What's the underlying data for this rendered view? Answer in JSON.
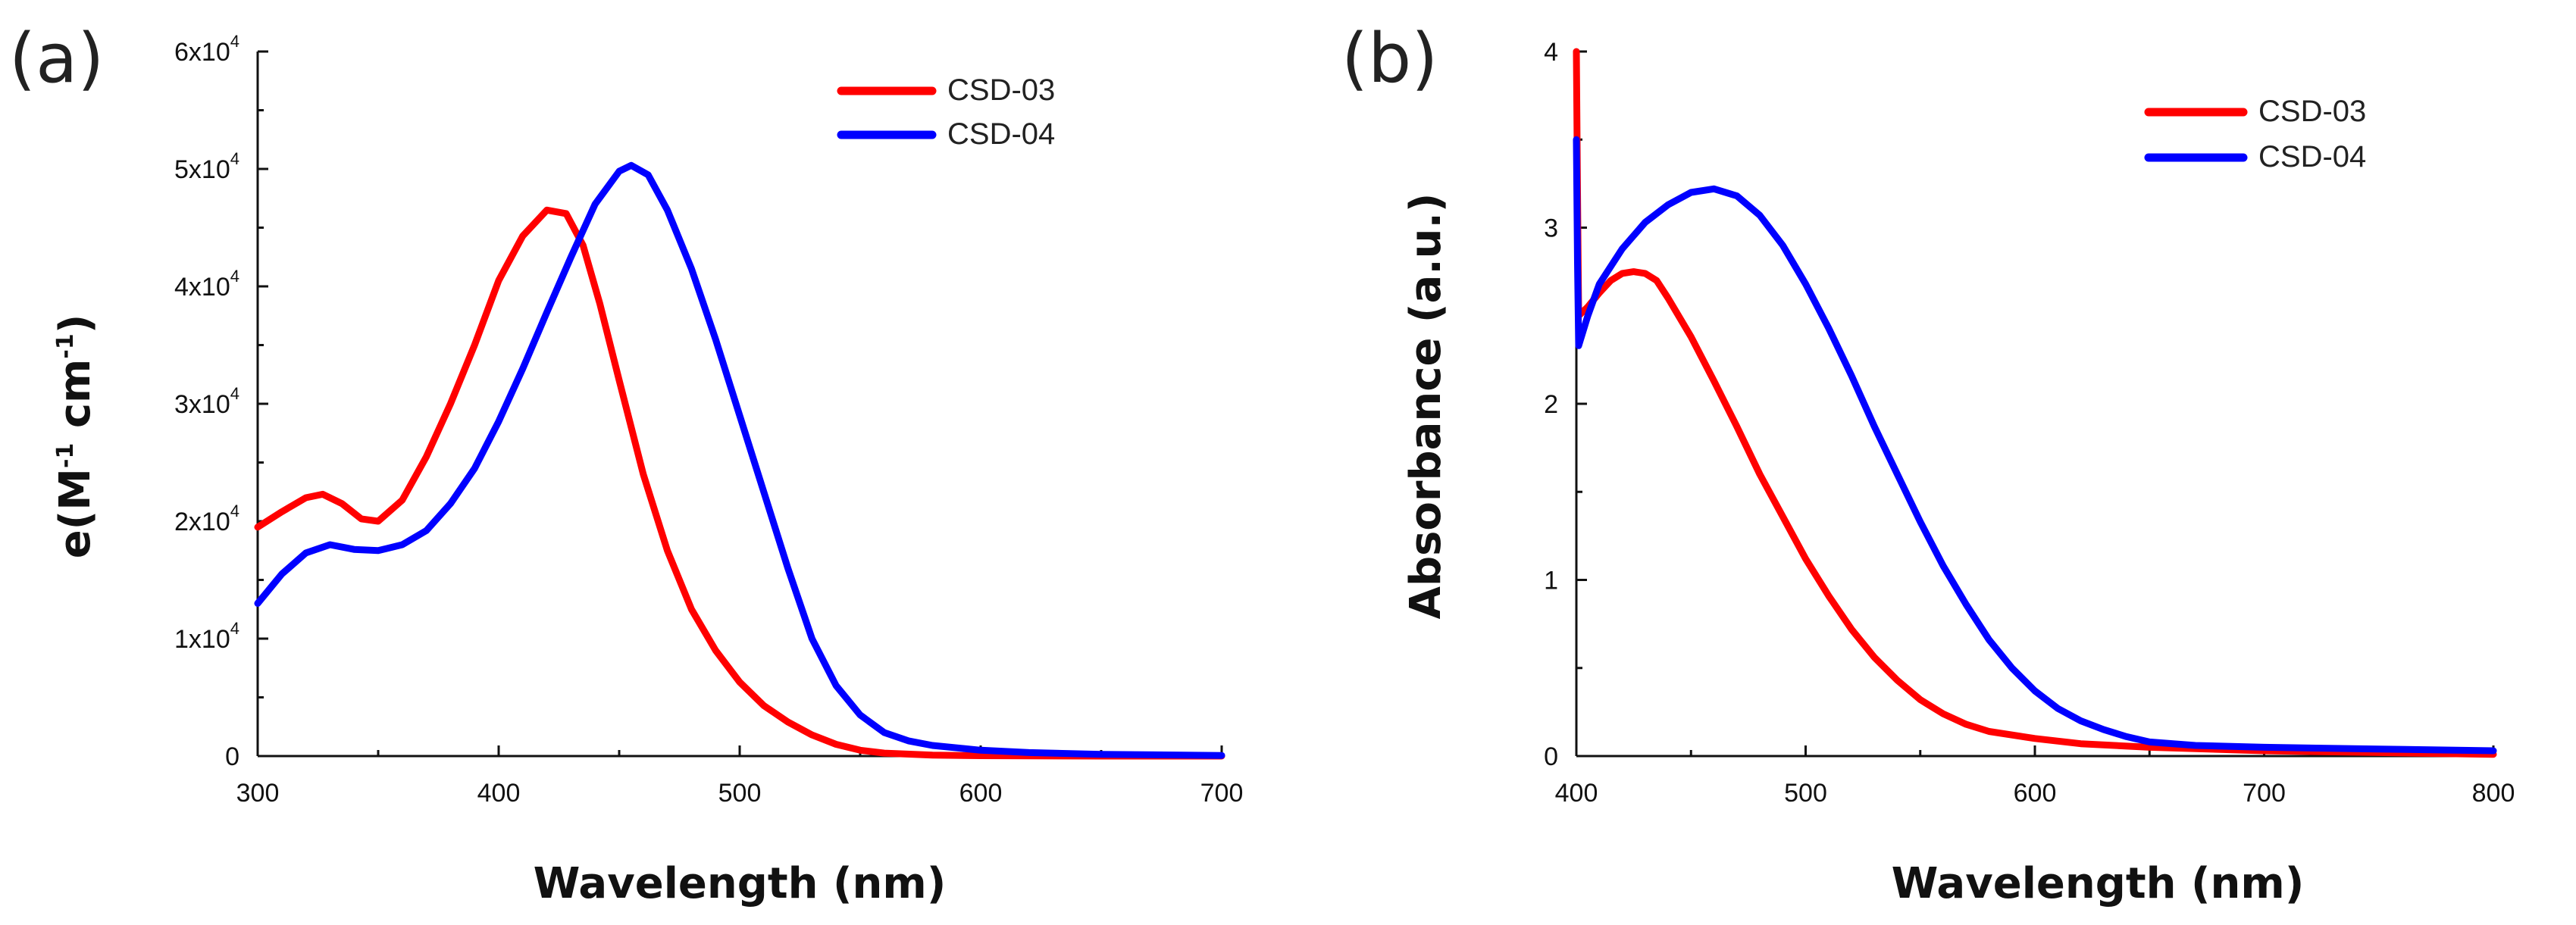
{
  "chart_data": [
    {
      "panel": "(a)",
      "type": "line",
      "title": "",
      "xlabel": "Wavelength (nm)",
      "ylabel": "e(M-1 cm-1)",
      "ylabel_parts": {
        "base": "e(M",
        "sup1": "-1",
        "mid": " cm",
        "sup2": "-1",
        "end": ")"
      },
      "xlim": [
        300,
        700
      ],
      "ylim": [
        0,
        60000
      ],
      "xticks": [
        300,
        400,
        500,
        600,
        700
      ],
      "yticks": [
        {
          "value": 0,
          "mantissa": "0",
          "exp": ""
        },
        {
          "value": 10000,
          "mantissa": "1x10",
          "exp": "4"
        },
        {
          "value": 20000,
          "mantissa": "2x10",
          "exp": "4"
        },
        {
          "value": 30000,
          "mantissa": "3x10",
          "exp": "4"
        },
        {
          "value": 40000,
          "mantissa": "4x10",
          "exp": "4"
        },
        {
          "value": 50000,
          "mantissa": "5x10",
          "exp": "4"
        },
        {
          "value": 60000,
          "mantissa": "6x10",
          "exp": "4"
        }
      ],
      "legend_position": "top-right",
      "series": [
        {
          "name": "CSD-03",
          "color": "#ff0000",
          "points": [
            [
              300,
              19500
            ],
            [
              310,
              20800
            ],
            [
              320,
              22000
            ],
            [
              327,
              22300
            ],
            [
              335,
              21500
            ],
            [
              343,
              20200
            ],
            [
              350,
              20000
            ],
            [
              360,
              21800
            ],
            [
              370,
              25500
            ],
            [
              380,
              30000
            ],
            [
              390,
              35000
            ],
            [
              400,
              40500
            ],
            [
              410,
              44300
            ],
            [
              420,
              46500
            ],
            [
              428,
              46200
            ],
            [
              435,
              43500
            ],
            [
              442,
              38500
            ],
            [
              450,
              32000
            ],
            [
              460,
              24000
            ],
            [
              470,
              17500
            ],
            [
              480,
              12500
            ],
            [
              490,
              9000
            ],
            [
              500,
              6300
            ],
            [
              510,
              4300
            ],
            [
              520,
              2900
            ],
            [
              530,
              1800
            ],
            [
              540,
              1000
            ],
            [
              550,
              500
            ],
            [
              560,
              250
            ],
            [
              580,
              80
            ],
            [
              600,
              30
            ],
            [
              650,
              0
            ],
            [
              700,
              0
            ]
          ]
        },
        {
          "name": "CSD-04",
          "color": "#0000ff",
          "points": [
            [
              300,
              13000
            ],
            [
              310,
              15500
            ],
            [
              320,
              17300
            ],
            [
              330,
              18000
            ],
            [
              340,
              17600
            ],
            [
              350,
              17500
            ],
            [
              360,
              18000
            ],
            [
              370,
              19200
            ],
            [
              380,
              21500
            ],
            [
              390,
              24500
            ],
            [
              400,
              28500
            ],
            [
              410,
              33000
            ],
            [
              420,
              37800
            ],
            [
              430,
              42500
            ],
            [
              440,
              47000
            ],
            [
              450,
              49800
            ],
            [
              455,
              50300
            ],
            [
              462,
              49500
            ],
            [
              470,
              46500
            ],
            [
              480,
              41500
            ],
            [
              490,
              35500
            ],
            [
              500,
              29000
            ],
            [
              510,
              22500
            ],
            [
              520,
              16000
            ],
            [
              530,
              10000
            ],
            [
              540,
              6000
            ],
            [
              550,
              3500
            ],
            [
              560,
              2000
            ],
            [
              570,
              1300
            ],
            [
              580,
              900
            ],
            [
              600,
              500
            ],
            [
              620,
              300
            ],
            [
              650,
              150
            ],
            [
              700,
              50
            ]
          ]
        }
      ]
    },
    {
      "panel": "(b)",
      "type": "line",
      "title": "",
      "xlabel": "Wavelength (nm)",
      "ylabel": "Absorbance (a.u.)",
      "xlim": [
        400,
        800
      ],
      "ylim": [
        0,
        4
      ],
      "xticks": [
        400,
        500,
        600,
        700,
        800
      ],
      "yticks": [
        {
          "value": 0,
          "mantissa": "0",
          "exp": ""
        },
        {
          "value": 1,
          "mantissa": "1",
          "exp": ""
        },
        {
          "value": 2,
          "mantissa": "2",
          "exp": ""
        },
        {
          "value": 3,
          "mantissa": "3",
          "exp": ""
        },
        {
          "value": 4,
          "mantissa": "4",
          "exp": ""
        }
      ],
      "legend_position": "top-right",
      "series": [
        {
          "name": "CSD-03",
          "color": "#ff0000",
          "points": [
            [
              400,
              4.0
            ],
            [
              400.5,
              3.2
            ],
            [
              401,
              2.5
            ],
            [
              405,
              2.55
            ],
            [
              410,
              2.63
            ],
            [
              415,
              2.7
            ],
            [
              420,
              2.74
            ],
            [
              425,
              2.75
            ],
            [
              430,
              2.74
            ],
            [
              435,
              2.7
            ],
            [
              440,
              2.6
            ],
            [
              450,
              2.38
            ],
            [
              460,
              2.13
            ],
            [
              470,
              1.87
            ],
            [
              480,
              1.6
            ],
            [
              490,
              1.36
            ],
            [
              500,
              1.12
            ],
            [
              510,
              0.91
            ],
            [
              520,
              0.72
            ],
            [
              530,
              0.56
            ],
            [
              540,
              0.43
            ],
            [
              550,
              0.32
            ],
            [
              560,
              0.24
            ],
            [
              570,
              0.18
            ],
            [
              580,
              0.14
            ],
            [
              600,
              0.1
            ],
            [
              620,
              0.07
            ],
            [
              650,
              0.05
            ],
            [
              700,
              0.03
            ],
            [
              750,
              0.02
            ],
            [
              800,
              0.01
            ]
          ]
        },
        {
          "name": "CSD-04",
          "color": "#0000ff",
          "points": [
            [
              400,
              3.5
            ],
            [
              400.5,
              2.8
            ],
            [
              401,
              2.33
            ],
            [
              405,
              2.5
            ],
            [
              410,
              2.68
            ],
            [
              420,
              2.88
            ],
            [
              430,
              3.03
            ],
            [
              440,
              3.13
            ],
            [
              450,
              3.2
            ],
            [
              460,
              3.22
            ],
            [
              470,
              3.18
            ],
            [
              480,
              3.07
            ],
            [
              490,
              2.9
            ],
            [
              500,
              2.68
            ],
            [
              510,
              2.43
            ],
            [
              520,
              2.16
            ],
            [
              530,
              1.87
            ],
            [
              540,
              1.6
            ],
            [
              550,
              1.33
            ],
            [
              560,
              1.08
            ],
            [
              570,
              0.86
            ],
            [
              580,
              0.66
            ],
            [
              590,
              0.5
            ],
            [
              600,
              0.37
            ],
            [
              610,
              0.27
            ],
            [
              620,
              0.2
            ],
            [
              630,
              0.15
            ],
            [
              640,
              0.11
            ],
            [
              650,
              0.08
            ],
            [
              670,
              0.06
            ],
            [
              700,
              0.05
            ],
            [
              750,
              0.04
            ],
            [
              800,
              0.03
            ]
          ]
        }
      ]
    }
  ]
}
